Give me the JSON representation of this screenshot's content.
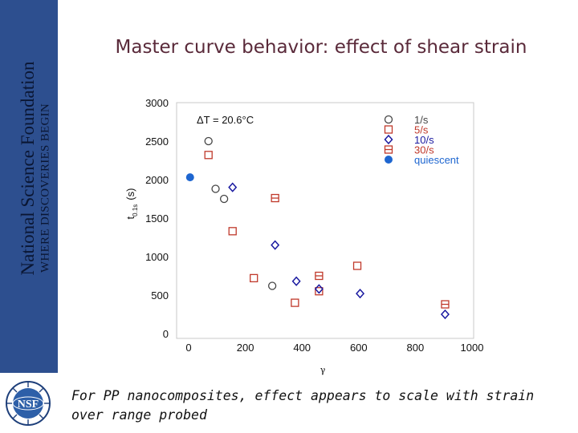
{
  "sidebar": {
    "org_name": "National Science Foundation",
    "tagline": "WHERE DISCOVERIES BEGIN",
    "logo_text": "NSF",
    "color": "#2d4f8f"
  },
  "slide": {
    "title": "Master curve behavior: effect of shear strain",
    "caption": "For PP nanocomposites, effect appears to scale with strain over range probed"
  },
  "chart_data": {
    "type": "scatter",
    "title": "",
    "xlabel": "γ",
    "ylabel": "t",
    "ylabel_sub": "0.1s",
    "ylabel_unit": "(s)",
    "annotation": "ΔT = 20.6°C",
    "xlim": [
      0,
      1000
    ],
    "ylim": [
      0,
      3000
    ],
    "xticks": [
      0,
      200,
      400,
      600,
      800,
      1000
    ],
    "yticks": [
      0,
      500,
      1000,
      1500,
      2000,
      2500,
      3000
    ],
    "grid": false,
    "legend_position": "top-right",
    "series": [
      {
        "name": "1/s",
        "marker": "circle-open",
        "color": "#444444",
        "x": [
          70,
          95,
          125,
          295
        ],
        "y": [
          2500,
          1880,
          1750,
          620
        ]
      },
      {
        "name": "5/s",
        "marker": "square-open",
        "color": "#c0392b",
        "x": [
          70,
          155,
          230,
          375,
          460,
          595
        ],
        "y": [
          2320,
          1330,
          720,
          400,
          550,
          880
        ]
      },
      {
        "name": "10/s",
        "marker": "diamond-open",
        "color": "#1a1aa0",
        "x": [
          155,
          305,
          380,
          460,
          605,
          905
        ],
        "y": [
          1900,
          1150,
          680,
          580,
          520,
          250
        ]
      },
      {
        "name": "30/s",
        "marker": "square-cross",
        "color": "#c0392b",
        "x": [
          305,
          460,
          905
        ],
        "y": [
          1760,
          750,
          380
        ]
      },
      {
        "name": "quiescent",
        "marker": "circle-filled",
        "color": "#1e66d0",
        "x": [
          5
        ],
        "y": [
          2030
        ]
      }
    ]
  }
}
